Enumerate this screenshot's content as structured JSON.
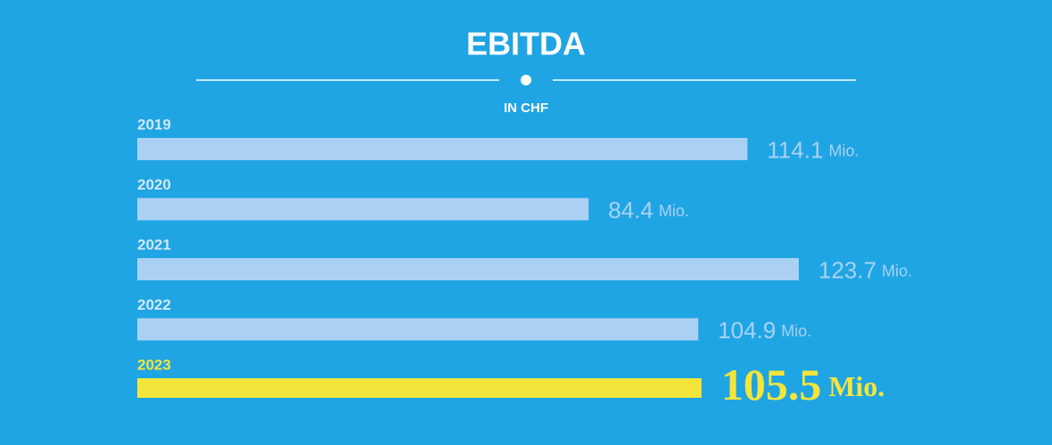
{
  "chart_data": {
    "type": "bar",
    "orientation": "horizontal",
    "title": "EBITDA",
    "subtitle": "IN CHF",
    "categories": [
      "2019",
      "2020",
      "2021",
      "2022",
      "2023"
    ],
    "values": [
      114.1,
      84.4,
      123.7,
      104.9,
      105.5
    ],
    "unit": "Mio.",
    "colors": [
      "#aad1f3",
      "#aad1f3",
      "#aad1f3",
      "#aad1f3",
      "#f5e53b"
    ],
    "background": "#1fa5e3"
  }
}
